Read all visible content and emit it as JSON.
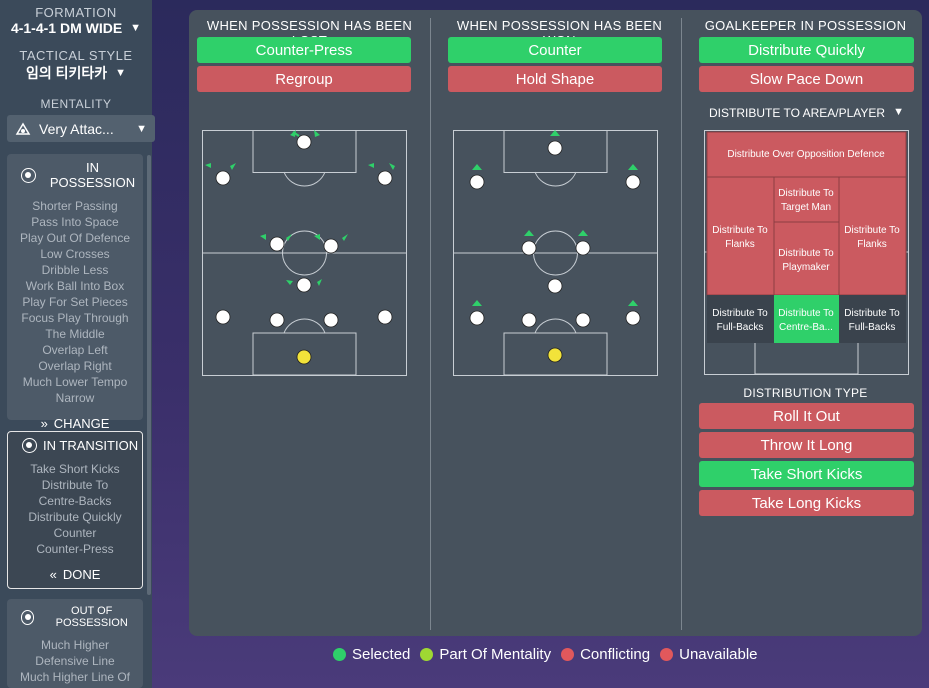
{
  "sidebar": {
    "formation_label": "FORMATION",
    "formation_value": "4-1-4-1 DM WIDE",
    "style_label": "TACTICAL STYLE",
    "style_value": "임의 티키타카",
    "mentality_label": "MENTALITY",
    "mentality_value": "Very Attac...",
    "in_possession": {
      "title": "IN POSSESSION",
      "items": [
        "Shorter Passing",
        "Pass Into Space",
        "Play Out Of Defence",
        "Low Crosses",
        "Dribble Less",
        "Work Ball Into Box",
        "Play For Set Pieces",
        "Focus Play Through",
        "The Middle",
        "Overlap Left",
        "Overlap Right",
        "Much Lower Tempo",
        "Narrow"
      ],
      "action": "CHANGE"
    },
    "in_transition": {
      "title": "IN TRANSITION",
      "items": [
        "Take Short Kicks",
        "Distribute To",
        "Centre-Backs",
        "Distribute Quickly",
        "Counter",
        "Counter-Press"
      ],
      "action": "DONE"
    },
    "out_of_possession": {
      "title": "OUT OF POSSESSION",
      "items": [
        "Much Higher",
        "Defensive Line",
        "Much Higher Line Of"
      ]
    }
  },
  "lost": {
    "title": "WHEN POSSESSION HAS BEEN LOST",
    "opt1": "Counter-Press",
    "opt2": "Regroup"
  },
  "won": {
    "title": "WHEN POSSESSION HAS BEEN WON",
    "opt1": "Counter",
    "opt2": "Hold Shape"
  },
  "gk": {
    "title": "GOALKEEPER IN POSSESSION",
    "opt1": "Distribute Quickly",
    "opt2": "Slow Pace Down",
    "dist_area_label": "DISTRIBUTE TO AREA/PLAYER",
    "zones": {
      "over_defence": "Distribute Over Opposition Defence",
      "target_man_1": "Distribute To",
      "target_man_2": "Target Man",
      "flanks_1": "Distribute To",
      "flanks_2": "Flanks",
      "playmaker_1": "Distribute To",
      "playmaker_2": "Playmaker",
      "fullbacks_1": "Distribute To",
      "fullbacks_2": "Full-Backs",
      "centrebacks_1": "Distribute To",
      "centrebacks_2": "Centre-Ba..."
    },
    "dist_type_label": "DISTRIBUTION TYPE",
    "types": [
      "Roll It Out",
      "Throw It Long",
      "Take Short Kicks",
      "Take Long Kicks"
    ]
  },
  "legend": {
    "selected": "Selected",
    "mentality": "Part Of Mentality",
    "conflicting": "Conflicting",
    "unavailable": "Unavailable"
  },
  "colors": {
    "selected": "#2fd06a",
    "mentality": "#9fd833",
    "conflicting": "#e1585c",
    "unavailable": "#e1585c"
  }
}
